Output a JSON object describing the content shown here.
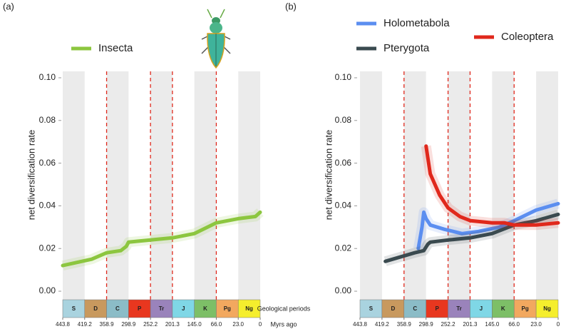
{
  "chart_data": [
    {
      "type": "line",
      "title": "(a)",
      "y_label": "net diversification rate",
      "period_label": "Geological periods",
      "time_label": "Myrs ago",
      "periods": [
        "S",
        "D",
        "C",
        "P",
        "Tr",
        "J",
        "K",
        "Pg",
        "Ng"
      ],
      "period_colors": [
        "#a9d3df",
        "#c8995e",
        "#8bbcc7",
        "#e8371f",
        "#9a83bb",
        "#7fd7e6",
        "#7dbf67",
        "#f2a85f",
        "#f5ee2d"
      ],
      "xlim": [
        443.8,
        0
      ],
      "xticks": [
        443.8,
        419.2,
        358.9,
        298.9,
        252.2,
        201.3,
        {
          "value": 145,
          "label": "145.0"
        },
        {
          "value": 66,
          "label": "66.0"
        },
        {
          "value": 23,
          "label": "23.0"
        },
        0
      ],
      "extinction_lines": [
        358.9,
        252.2,
        201.3,
        66
      ],
      "ylim": [
        -0.004,
        0.103
      ],
      "yticks": [
        {
          "value": 0,
          "label": "0.00"
        },
        {
          "value": 0.02,
          "label": "0.02"
        },
        {
          "value": 0.04,
          "label": "0.04"
        },
        {
          "value": 0.06,
          "label": "0.06"
        },
        {
          "value": 0.08,
          "label": "0.08"
        },
        {
          "value": 0.1,
          "label": "0.10"
        }
      ],
      "series": [
        {
          "name": "Insecta",
          "color": "#8cc63f",
          "x": [
            443.8,
            400,
            358.9,
            320,
            305,
            298.9,
            252.2,
            201.3,
            145,
            66,
            23,
            5,
            0
          ],
          "values": [
            0.012,
            0.015,
            0.018,
            0.019,
            0.021,
            0.023,
            0.024,
            0.025,
            0.027,
            0.032,
            0.034,
            0.035,
            0.037
          ]
        }
      ]
    },
    {
      "type": "line",
      "title": "(b)",
      "y_label": "net diversification rate",
      "periods": [
        "S",
        "D",
        "C",
        "P",
        "Tr",
        "J",
        "K",
        "Pg",
        "Ng"
      ],
      "period_colors": [
        "#a9d3df",
        "#c8995e",
        "#8bbcc7",
        "#e8371f",
        "#9a83bb",
        "#7fd7e6",
        "#7dbf67",
        "#f2a85f",
        "#f5ee2d"
      ],
      "xlim": [
        443.8,
        0
      ],
      "xticks": [
        443.8,
        419.2,
        358.9,
        298.9,
        252.2,
        201.3,
        {
          "value": 145,
          "label": "145.0"
        },
        {
          "value": 66,
          "label": "66.0"
        },
        {
          "value": 23,
          "label": "23.0"
        },
        0
      ],
      "extinction_lines": [
        358.9,
        252.2,
        201.3,
        66
      ],
      "ylim": [
        -0.004,
        0.103
      ],
      "yticks": [
        {
          "value": 0,
          "label": "0.00"
        },
        {
          "value": 0.02,
          "label": "0.02"
        },
        {
          "value": 0.04,
          "label": "0.04"
        },
        {
          "value": 0.06,
          "label": "0.06"
        },
        {
          "value": 0.08,
          "label": "0.08"
        },
        {
          "value": 0.1,
          "label": "0.10"
        }
      ],
      "series": [
        {
          "name": "Holometabola",
          "color": "#5b8ef0",
          "x": [
            320,
            310,
            305,
            298.9,
            290,
            260,
            220,
            180,
            120,
            66,
            23,
            0
          ],
          "values": [
            0.02,
            0.03,
            0.037,
            0.034,
            0.031,
            0.029,
            0.027,
            0.028,
            0.03,
            0.033,
            0.038,
            0.041
          ]
        },
        {
          "name": "Pterygota",
          "color": "#3a4a4f",
          "x": [
            410,
            330,
            305,
            295,
            290,
            252.2,
            201.3,
            145,
            66,
            23,
            0
          ],
          "values": [
            0.014,
            0.018,
            0.019,
            0.022,
            0.023,
            0.024,
            0.025,
            0.027,
            0.031,
            0.033,
            0.036
          ]
        },
        {
          "name": "Coleoptera",
          "color": "#e0281c",
          "x": [
            298.9,
            290,
            270,
            252.2,
            225,
            200,
            145,
            100,
            66,
            23,
            0
          ],
          "values": [
            0.068,
            0.055,
            0.045,
            0.039,
            0.035,
            0.033,
            0.032,
            0.032,
            0.031,
            0.031,
            0.032
          ]
        }
      ]
    }
  ]
}
